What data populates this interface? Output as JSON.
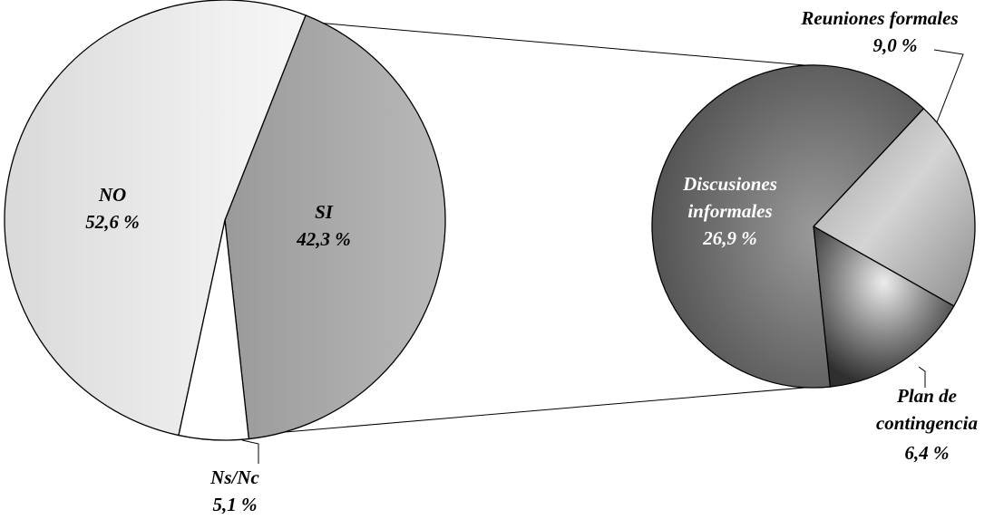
{
  "chart_data": {
    "type": "pie",
    "variant": "pie-of-pie",
    "main_pie": {
      "slices": [
        {
          "label": "SI",
          "value_label": "42,3 %",
          "value": 42.3,
          "color": "#a6a6a6",
          "label_color": "#000000"
        },
        {
          "label": "Ns/Nc",
          "value_label": "5,1 %",
          "value": 5.1,
          "color": "#ffffff",
          "label_color": "#000000"
        },
        {
          "label": "NO",
          "value_label": "52,6 %",
          "value": 52.6,
          "color": "#e6e6e6",
          "label_color": "#000000"
        }
      ]
    },
    "secondary_pie": {
      "breakdown_of": "SI",
      "slices": [
        {
          "label_lines": [
            "Reuniones formales"
          ],
          "value_label": "9,0 %",
          "value": 9.0,
          "color": "#b4b4b4",
          "label_color": "#000000"
        },
        {
          "label_lines": [
            "Plan de",
            "contingencia"
          ],
          "value_label": "6,4 %",
          "value": 6.4,
          "color": "#8a8a8a",
          "label_color": "#000000"
        },
        {
          "label_lines": [
            "Discusiones",
            "informales"
          ],
          "value_label": "26,9 %",
          "value": 26.9,
          "color": "#6f6f6f",
          "label_color": "#ffffff"
        }
      ]
    },
    "legend": "none"
  }
}
